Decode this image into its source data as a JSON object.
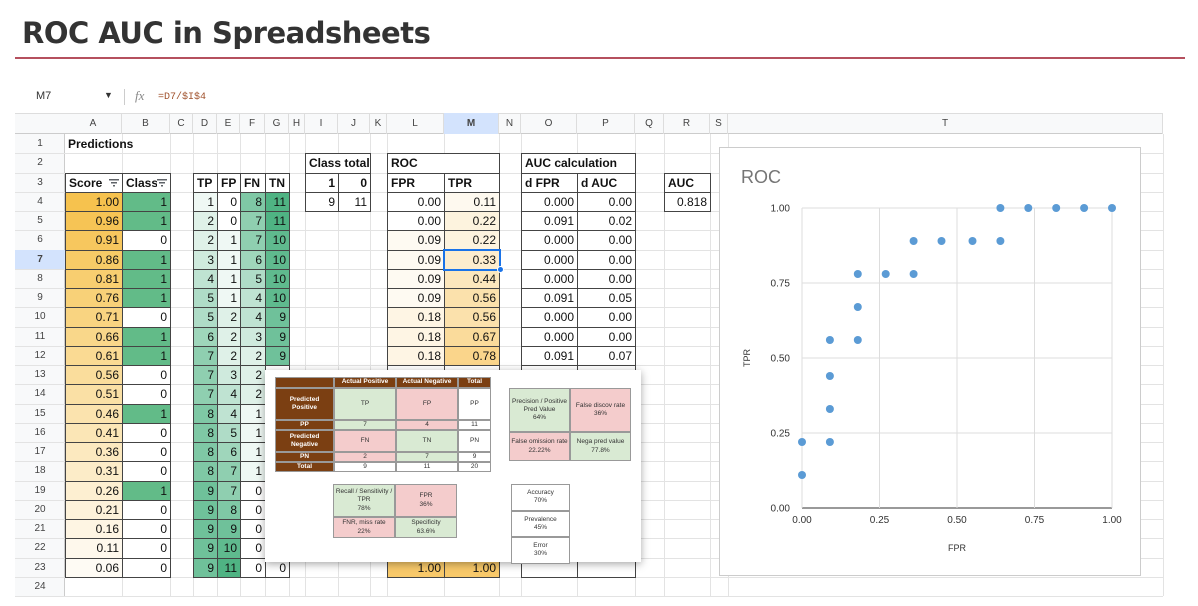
{
  "title": "ROC AUC in Spreadsheets",
  "formula_bar": {
    "cell": "M7",
    "formula": "=D7/$I$4"
  },
  "sheet": {
    "columns": [
      "A",
      "B",
      "C",
      "D",
      "E",
      "F",
      "G",
      "H",
      "I",
      "J",
      "K",
      "L",
      "M",
      "N",
      "O",
      "P",
      "Q",
      "R",
      "S",
      "T"
    ],
    "rows": [
      1,
      2,
      3,
      4,
      5,
      6,
      7,
      8,
      9,
      10,
      11,
      12,
      13,
      14,
      15,
      16,
      17,
      18,
      19,
      20,
      21,
      22,
      23,
      24
    ],
    "cells": {
      "A1": "Predictions",
      "I2": "Class total",
      "L2": "ROC",
      "O2": "AUC calculation",
      "A3": "Score",
      "B3": "Class",
      "D3": "TP",
      "E3": "FP",
      "F3": "FN",
      "G3": "TN",
      "I3": "1",
      "J3": "0",
      "L3": "FPR",
      "M3": "TPR",
      "O3": "d FPR",
      "P3": "d AUC",
      "R3": "AUC",
      "I4": "9",
      "J4": "11",
      "R4": "0.818",
      "A4": "1.00",
      "B4": "1",
      "D4": "1",
      "E4": "0",
      "F4": "8",
      "G4": "11",
      "L4": "0.00",
      "M4": "0.11",
      "O4": "0.000",
      "P4": "0.00",
      "A5": "0.96",
      "B5": "1",
      "D5": "2",
      "E5": "0",
      "F5": "7",
      "G5": "11",
      "L5": "0.00",
      "M5": "0.22",
      "O5": "0.091",
      "P5": "0.02",
      "A6": "0.91",
      "B6": "0",
      "D6": "2",
      "E6": "1",
      "F6": "7",
      "G6": "10",
      "L6": "0.09",
      "M6": "0.22",
      "O6": "0.000",
      "P6": "0.00",
      "A7": "0.86",
      "B7": "1",
      "D7": "3",
      "E7": "1",
      "F7": "6",
      "G7": "10",
      "L7": "0.09",
      "M7": "0.33",
      "O7": "0.000",
      "P7": "0.00",
      "A8": "0.81",
      "B8": "1",
      "D8": "4",
      "E8": "1",
      "F8": "5",
      "G8": "10",
      "L8": "0.09",
      "M8": "0.44",
      "O8": "0.000",
      "P8": "0.00",
      "A9": "0.76",
      "B9": "1",
      "D9": "5",
      "E9": "1",
      "F9": "4",
      "G9": "10",
      "L9": "0.09",
      "M9": "0.56",
      "O9": "0.091",
      "P9": "0.05",
      "A10": "0.71",
      "B10": "0",
      "D10": "5",
      "E10": "2",
      "F10": "4",
      "G10": "9",
      "L10": "0.18",
      "M10": "0.56",
      "O10": "0.000",
      "P10": "0.00",
      "A11": "0.66",
      "B11": "1",
      "D11": "6",
      "E11": "2",
      "F11": "3",
      "G11": "9",
      "L11": "0.18",
      "M11": "0.67",
      "O11": "0.000",
      "P11": "0.00",
      "A12": "0.61",
      "B12": "1",
      "D12": "7",
      "E12": "2",
      "F12": "2",
      "G12": "9",
      "L12": "0.18",
      "M12": "0.78",
      "O12": "0.091",
      "P12": "0.07",
      "A13": "0.56",
      "B13": "0",
      "D13": "7",
      "E13": "3",
      "F13": "2",
      "A14": "0.51",
      "B14": "0",
      "D14": "7",
      "E14": "4",
      "F14": "2",
      "A15": "0.46",
      "B15": "1",
      "D15": "8",
      "E15": "4",
      "F15": "1",
      "A16": "0.41",
      "B16": "0",
      "D16": "8",
      "E16": "5",
      "F16": "1",
      "A17": "0.36",
      "B17": "0",
      "D17": "8",
      "E17": "6",
      "F17": "1",
      "A18": "0.31",
      "B18": "0",
      "D18": "8",
      "E18": "7",
      "F18": "1",
      "A19": "0.26",
      "B19": "1",
      "D19": "9",
      "E19": "7",
      "F19": "0",
      "A20": "0.21",
      "B20": "0",
      "D20": "9",
      "E20": "8",
      "F20": "0",
      "A21": "0.16",
      "B21": "0",
      "D21": "9",
      "E21": "9",
      "F21": "0",
      "A22": "0.11",
      "B22": "0",
      "D22": "9",
      "E22": "10",
      "F22": "0",
      "A23": "0.06",
      "B23": "0",
      "D23": "9",
      "E23": "11",
      "F23": "0",
      "G23": "0",
      "L23": "1.00",
      "M23": "1.00"
    }
  },
  "popup": {
    "matrix": {
      "header": [
        "Actual Positive",
        "Actual Negative",
        "Total"
      ],
      "rows": [
        [
          "Predicted Positive",
          "TP",
          "FP",
          "PP"
        ],
        [
          "PP",
          "7",
          "4",
          "11"
        ],
        [
          "Predicted Negative",
          "FN",
          "TN",
          "PN"
        ],
        [
          "PN",
          "2",
          "7",
          "9"
        ],
        [
          "Total",
          "9",
          "11",
          "20"
        ]
      ]
    },
    "predictive": [
      {
        "label": "Precision / Positive Pred Value",
        "value": "64%"
      },
      {
        "label": "False discov rate",
        "value": "36%"
      },
      {
        "label": "False omission rate",
        "value": "22.22%"
      },
      {
        "label": "Nega pred value",
        "value": "77.8%"
      }
    ],
    "rates": [
      {
        "label": "Recall / Sensitivity / TPR",
        "value": "78%"
      },
      {
        "label": "FPR",
        "value": "36%"
      },
      {
        "label": "FNR, miss rate",
        "value": "22%"
      },
      {
        "label": "Specificity",
        "value": "63.6%"
      }
    ],
    "summary": [
      {
        "label": "Accuracy",
        "value": "70%"
      },
      {
        "label": "Prevalence",
        "value": "45%"
      },
      {
        "label": "Error",
        "value": "30%"
      }
    ]
  },
  "chart": {
    "type": "scatter",
    "title": "ROC",
    "x_label": "FPR",
    "y_label": "TPR",
    "color": "#5b9bd5",
    "x": [
      0,
      0,
      0.09,
      0.09,
      0.09,
      0.09,
      0.18,
      0.18,
      0.18,
      0.27,
      0.36,
      0.36,
      0.45,
      0.55,
      0.64,
      0.64,
      0.73,
      0.82,
      0.91,
      1
    ],
    "y": [
      0.11,
      0.22,
      0.22,
      0.33,
      0.44,
      0.56,
      0.56,
      0.67,
      0.78,
      0.78,
      0.78,
      0.89,
      0.89,
      0.89,
      0.89,
      1,
      1,
      1,
      1,
      1
    ],
    "xlim": [
      0,
      1
    ],
    "ylim": [
      0,
      1
    ],
    "xticks": [
      {
        "value": 0,
        "label": "0.00"
      },
      {
        "value": 0.25,
        "label": "0.25"
      },
      {
        "value": 0.5,
        "label": "0.50"
      },
      {
        "value": 0.75,
        "label": "0.75"
      },
      {
        "value": 1,
        "label": "1.00"
      }
    ],
    "yticks": [
      {
        "value": 0,
        "label": "0.00"
      },
      {
        "value": 0.25,
        "label": "0.25"
      },
      {
        "value": 0.5,
        "label": "0.50"
      },
      {
        "value": 0.75,
        "label": "0.75"
      },
      {
        "value": 1,
        "label": "1.00"
      }
    ],
    "grid": true
  }
}
